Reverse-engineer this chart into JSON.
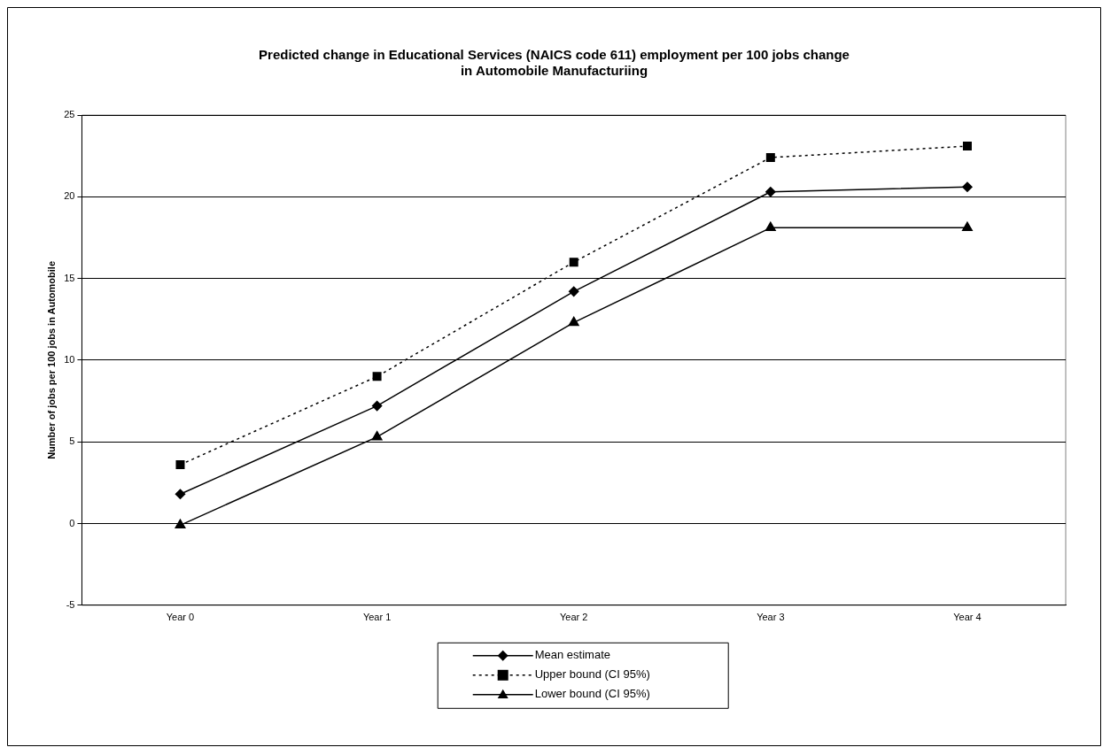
{
  "chart_data": {
    "type": "line",
    "title": "Predicted change in Educational Services (NAICS code 611) employment per 100 jobs change\nin Automobile Manufacturiing",
    "ylabel": "Number of jobs per 100 jobs in Automobile",
    "categories": [
      "Year 0",
      "Year 1",
      "Year 2",
      "Year 3",
      "Year 4"
    ],
    "series": [
      {
        "name": "Mean estimate",
        "color": "#000000",
        "marker": "diamond",
        "line_style": "solid",
        "values": [
          1.8,
          7.2,
          14.2,
          20.3,
          20.6
        ]
      },
      {
        "name": "Upper bound (CI 95%)",
        "color": "#000000",
        "marker": "square",
        "line_style": "dotted",
        "values": [
          3.6,
          9.0,
          16.0,
          22.4,
          23.1
        ]
      },
      {
        "name": "Lower bound (CI 95%)",
        "color": "#000000",
        "marker": "triangle",
        "line_style": "solid",
        "values": [
          -0.1,
          5.3,
          12.3,
          18.1,
          18.1
        ]
      }
    ],
    "ylim": [
      -5,
      25
    ],
    "yticks": [
      -5,
      0,
      5,
      10,
      15,
      20,
      25
    ],
    "grid": "y",
    "legend": "bottom"
  }
}
